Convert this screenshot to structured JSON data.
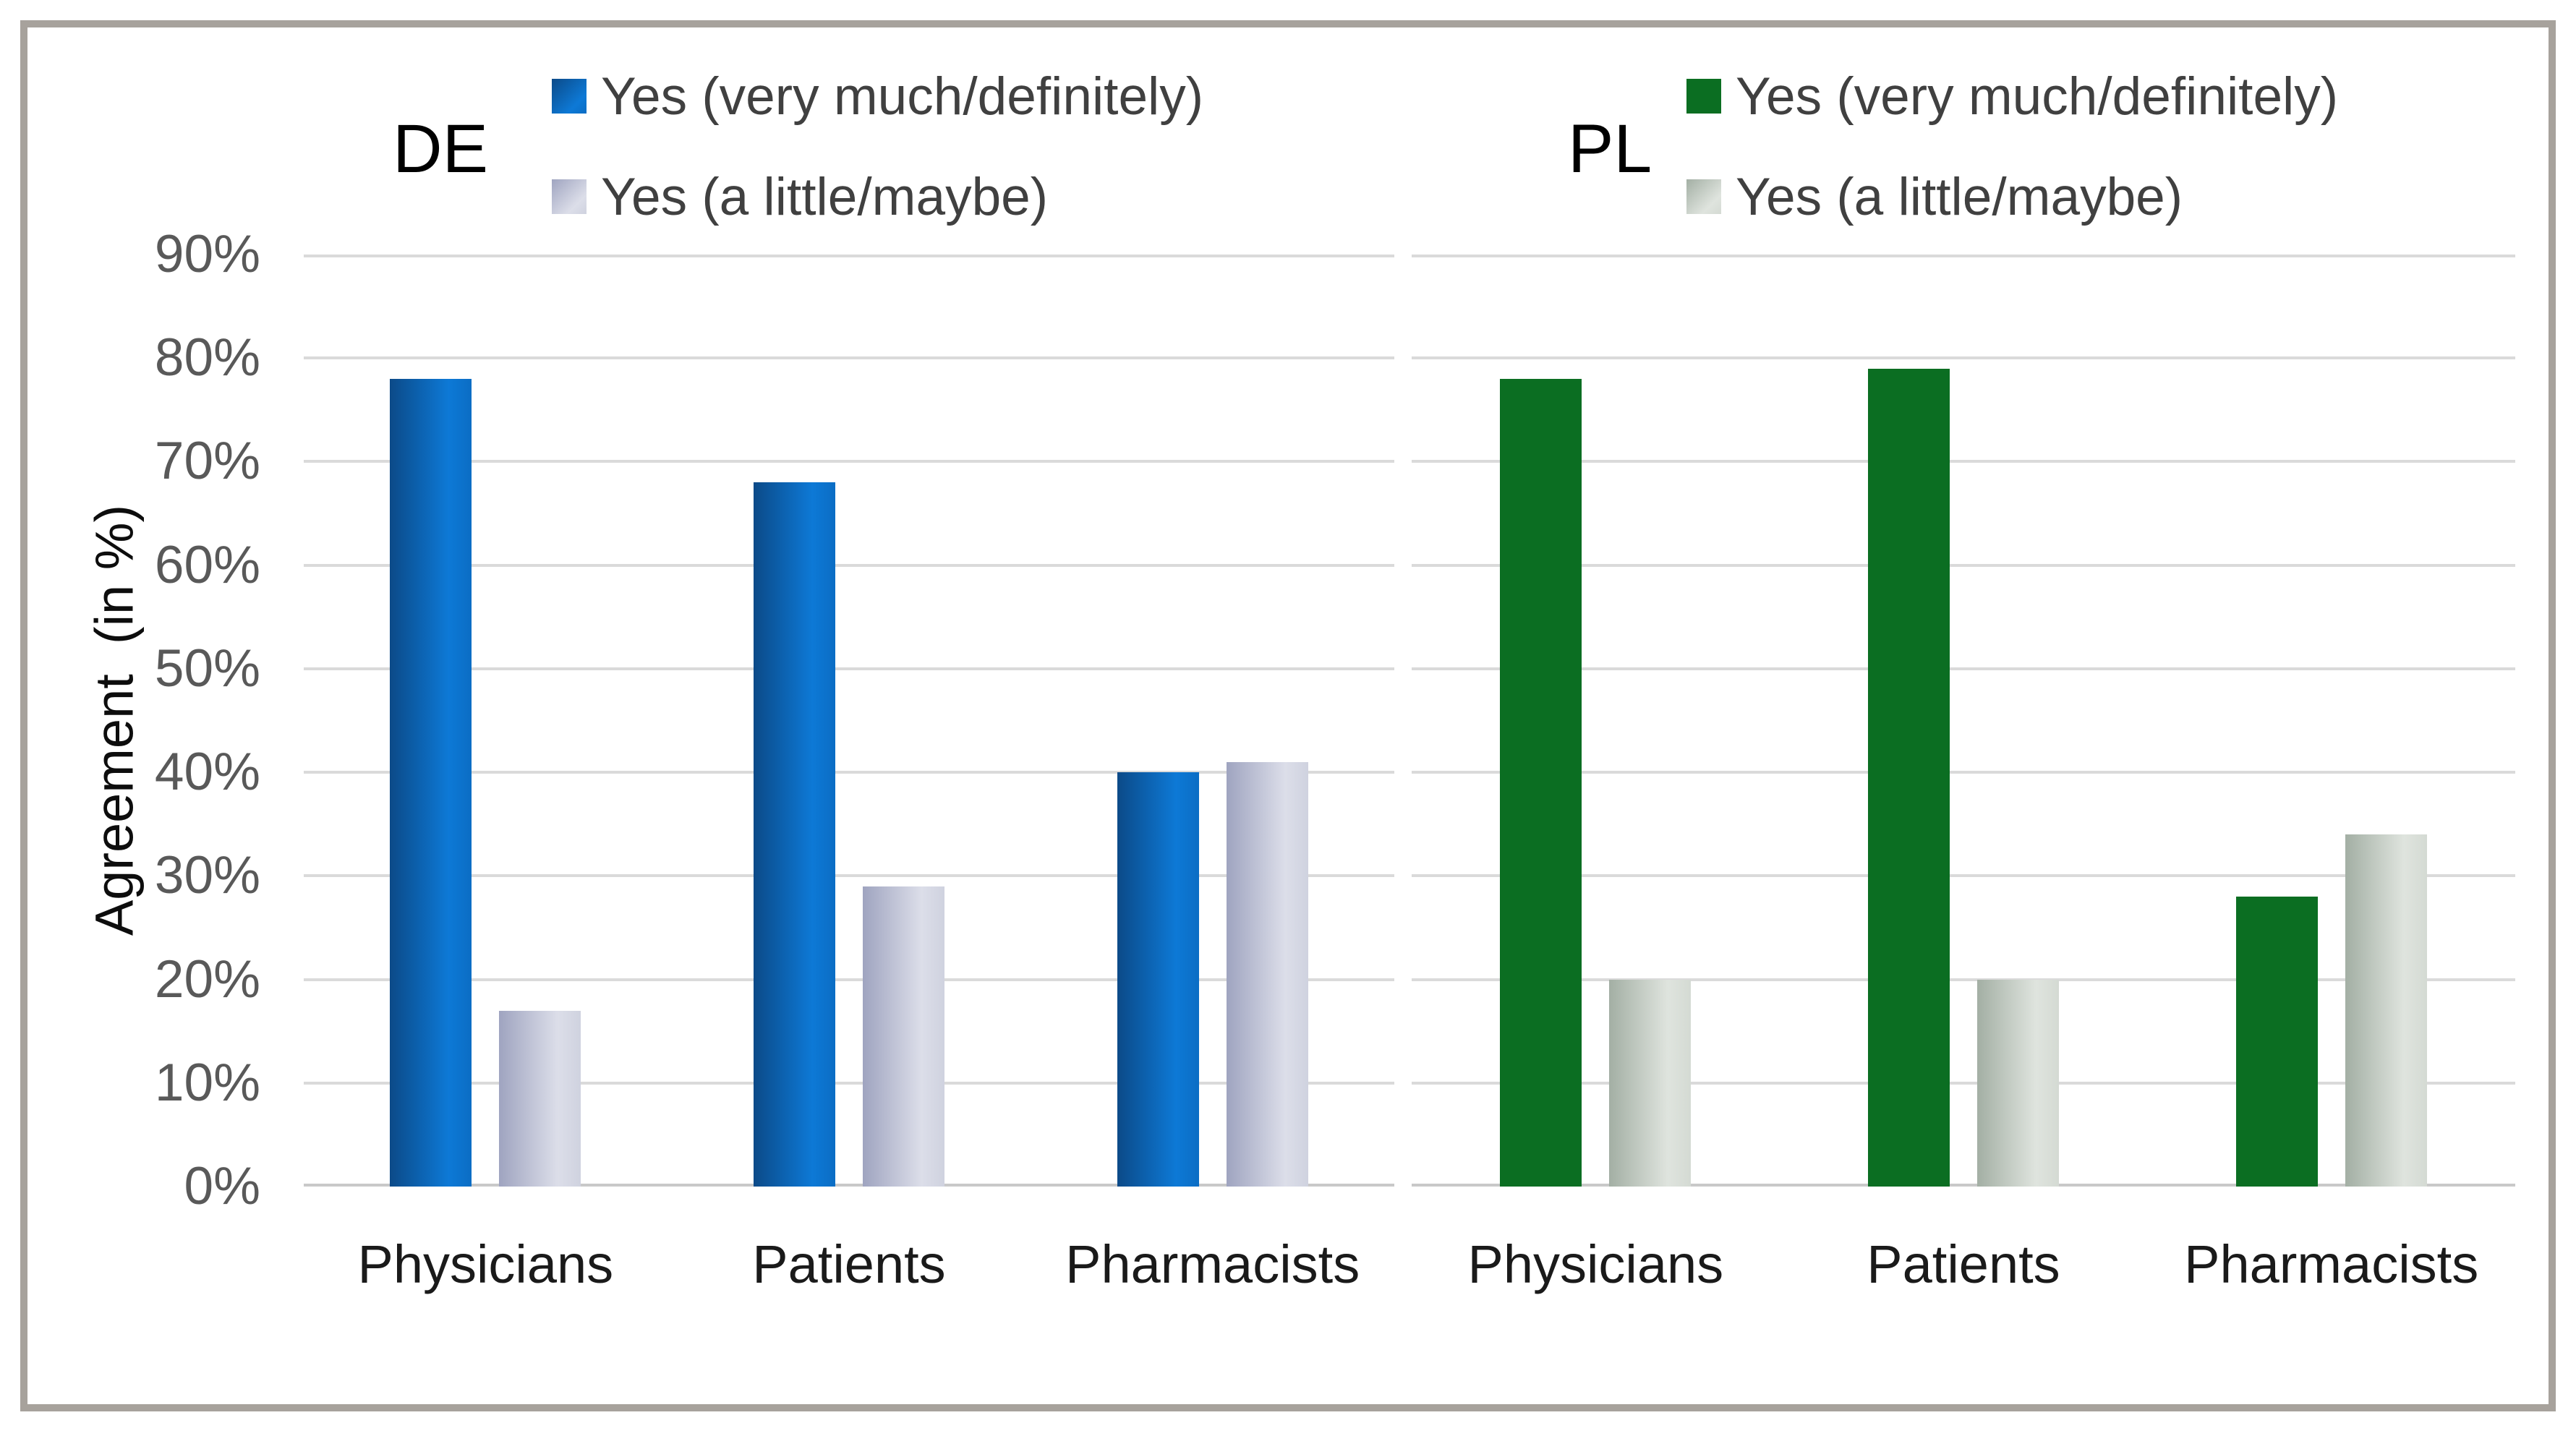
{
  "chart_data": {
    "type": "bar",
    "title": "",
    "ylabel": "Agreement  (in %)",
    "ylim": [
      0,
      90
    ],
    "ytick_step": 10,
    "ytick_labels": [
      "0%",
      "10%",
      "20%",
      "30%",
      "40%",
      "50%",
      "60%",
      "70%",
      "80%",
      "90%"
    ],
    "grid": true,
    "legend_position": "top-per-panel",
    "categories": [
      "Physicians",
      "Patients",
      "Pharmacists"
    ],
    "panels": [
      {
        "label": "DE",
        "series": [
          {
            "name": "Yes (very much/definitely)",
            "values": [
              78,
              68,
              40
            ],
            "fill": {
              "style": "gradient",
              "from": "#0c4a88",
              "mid": "#0d79d6",
              "to": "#0b6dc4"
            }
          },
          {
            "name": "Yes (a little/maybe)",
            "values": [
              17,
              29,
              41
            ],
            "fill": {
              "style": "gradient",
              "from": "#9fa4c0",
              "mid": "#dcdee9",
              "to": "#cfd2df"
            }
          }
        ]
      },
      {
        "label": "PL",
        "series": [
          {
            "name": "Yes (very much/definitely)",
            "values": [
              78,
              79,
              28
            ],
            "fill": {
              "style": "solid",
              "color": "#0b6e22"
            }
          },
          {
            "name": "Yes (a little/maybe)",
            "values": [
              20,
              20,
              34
            ],
            "fill": {
              "style": "gradient",
              "from": "#a3afa4",
              "mid": "#dfe4de",
              "to": "#d4dad3"
            }
          }
        ]
      }
    ],
    "colors": {
      "gridline": "#dadada",
      "axis_line": "#c9c9c9",
      "tick_text": "#595959",
      "legend_text": "#404040",
      "category_text": "#1a1a1a",
      "panel_label_text": "#000000",
      "frame_border": "#a7a29c"
    }
  }
}
